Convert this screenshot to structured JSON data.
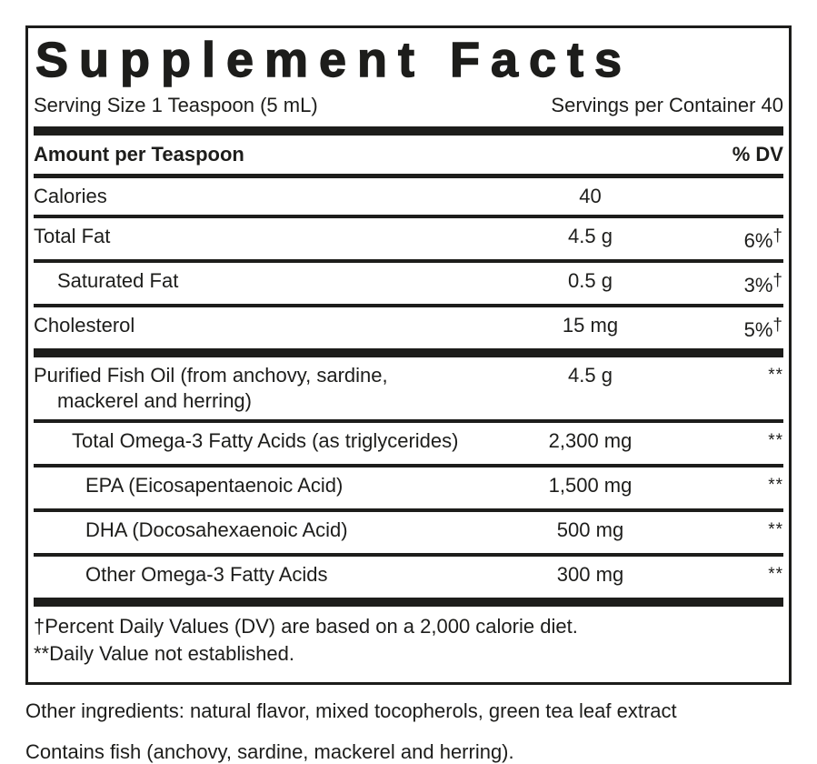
{
  "colors": {
    "ink": "#1d1d1b",
    "background": "#ffffff"
  },
  "panel": {
    "title": "Supplement Facts",
    "serving_size": "Serving Size 1 Teaspoon (5 mL)",
    "servings_per_container": "Servings per Container 40",
    "amount_header": "Amount per Teaspoon",
    "dv_header": "% DV",
    "rows": [
      {
        "name": "Calories",
        "amount": "40",
        "dv": "",
        "mark": ""
      },
      {
        "name": "Total Fat",
        "amount": "4.5 g",
        "dv": "6%",
        "mark": "†"
      },
      {
        "name": "Saturated Fat",
        "amount": "0.5 g",
        "dv": "3%",
        "mark": "†"
      },
      {
        "name": "Cholesterol",
        "amount": "15 mg",
        "dv": "5%",
        "mark": "†"
      },
      {
        "name": "Purified Fish Oil (from anchovy, sardine,",
        "name2": "mackerel and herring)",
        "amount": "4.5 g",
        "dv": "",
        "mark": "**"
      },
      {
        "name": "Total Omega-3 Fatty Acids (as triglycerides)",
        "amount": "2,300 mg",
        "dv": "",
        "mark": "**"
      },
      {
        "name": "EPA (Eicosapentaenoic Acid)",
        "amount": "1,500 mg",
        "dv": "",
        "mark": "**"
      },
      {
        "name": "DHA (Docosahexaenoic Acid)",
        "amount": "500 mg",
        "dv": "",
        "mark": "**"
      },
      {
        "name": "Other Omega-3 Fatty Acids",
        "amount": "300 mg",
        "dv": "",
        "mark": "**"
      }
    ],
    "footnotes": [
      "†Percent Daily Values (DV) are based on a 2,000 calorie diet.",
      "**Daily Value not established."
    ]
  },
  "below_panel": {
    "other_ingredients": "Other ingredients: natural flavor, mixed tocopherols, green tea leaf extract",
    "contains": "Contains fish (anchovy, sardine, mackerel and herring)."
  }
}
